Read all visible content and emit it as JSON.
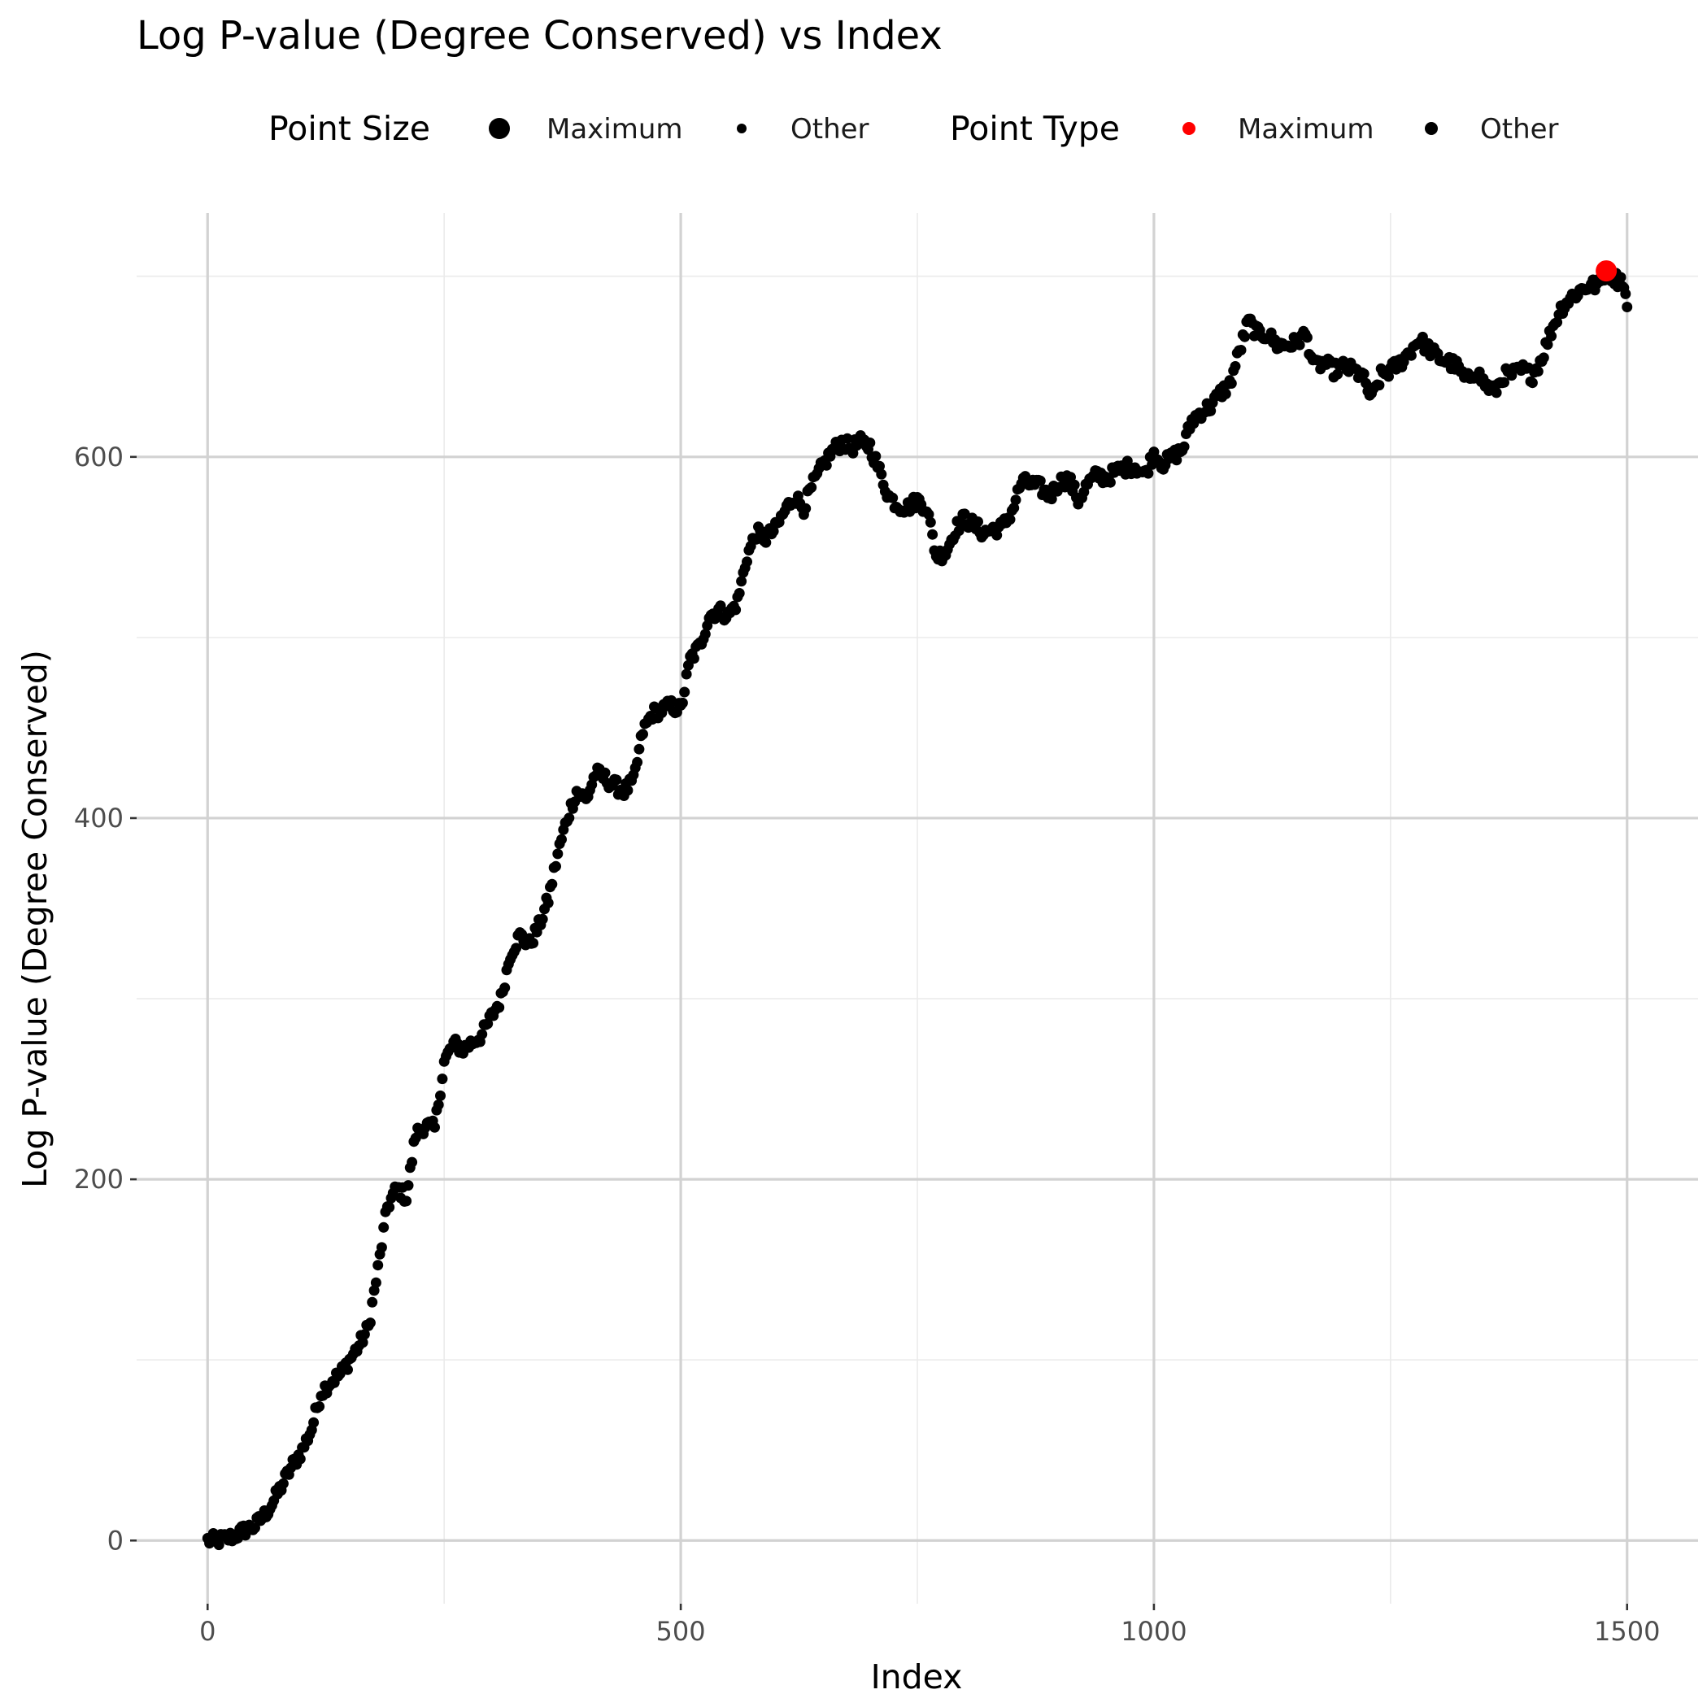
{
  "chart_data": {
    "type": "scatter",
    "title": "Log P-value (Degree Conserved) vs Index",
    "xlabel": "Index",
    "ylabel": "Log P-value (Degree Conserved)",
    "xlim": [
      -75,
      1575
    ],
    "ylim": [
      -35,
      735
    ],
    "x_ticks": [
      0,
      500,
      1000,
      1500
    ],
    "y_ticks": [
      0,
      200,
      400,
      600
    ],
    "x_tick_labels": [
      "0",
      "500",
      "1000",
      "1500"
    ],
    "y_tick_labels": [
      "0",
      "200",
      "400",
      "600"
    ],
    "grid": true,
    "legend_position": "top",
    "legends": [
      {
        "title": "Point Size",
        "entries": [
          {
            "label": "Maximum",
            "kind": "size-large",
            "color": "#000000"
          },
          {
            "label": "Other",
            "kind": "size-small",
            "color": "#000000"
          }
        ]
      },
      {
        "title": "Point Type",
        "entries": [
          {
            "label": "Maximum",
            "kind": "color",
            "color": "#ff0000"
          },
          {
            "label": "Other",
            "kind": "color",
            "color": "#000000"
          }
        ]
      }
    ],
    "maximum_point": {
      "x": 1478,
      "y": 703,
      "color": "#ff0000"
    },
    "other_color": "#000000",
    "series_anchors": {
      "x": [
        0,
        10,
        20,
        30,
        40,
        50,
        60,
        70,
        80,
        90,
        100,
        110,
        120,
        130,
        140,
        150,
        160,
        170,
        180,
        190,
        200,
        210,
        220,
        230,
        240,
        250,
        260,
        270,
        280,
        290,
        300,
        310,
        320,
        330,
        340,
        350,
        360,
        370,
        380,
        390,
        400,
        410,
        420,
        430,
        440,
        450,
        460,
        470,
        480,
        490,
        500,
        510,
        520,
        530,
        540,
        550,
        560,
        570,
        580,
        590,
        600,
        610,
        620,
        630,
        640,
        650,
        660,
        670,
        680,
        690,
        700,
        710,
        720,
        730,
        740,
        750,
        760,
        770,
        780,
        790,
        800,
        810,
        820,
        830,
        840,
        850,
        860,
        870,
        880,
        890,
        900,
        910,
        920,
        930,
        940,
        950,
        960,
        970,
        980,
        990,
        1000,
        1010,
        1020,
        1030,
        1040,
        1050,
        1060,
        1070,
        1080,
        1090,
        1100,
        1110,
        1120,
        1130,
        1140,
        1150,
        1160,
        1170,
        1180,
        1190,
        1200,
        1210,
        1220,
        1230,
        1240,
        1250,
        1260,
        1270,
        1280,
        1290,
        1300,
        1310,
        1320,
        1330,
        1340,
        1350,
        1360,
        1370,
        1380,
        1390,
        1400,
        1410,
        1420,
        1430,
        1440,
        1450,
        1460,
        1470,
        1478,
        1485,
        1490,
        1495,
        1500
      ],
      "y": [
        0,
        0,
        1,
        3,
        6,
        8,
        14,
        22,
        32,
        42,
        50,
        62,
        82,
        88,
        92,
        100,
        108,
        118,
        150,
        185,
        195,
        190,
        225,
        230,
        228,
        265,
        275,
        272,
        276,
        280,
        290,
        300,
        325,
        335,
        330,
        340,
        355,
        380,
        400,
        415,
        410,
        425,
        422,
        418,
        415,
        420,
        448,
        458,
        460,
        462,
        460,
        488,
        495,
        512,
        515,
        512,
        520,
        545,
        558,
        555,
        560,
        570,
        578,
        572,
        585,
        595,
        603,
        608,
        605,
        608,
        606,
        592,
        578,
        573,
        572,
        576,
        572,
        545,
        547,
        560,
        566,
        562,
        558,
        560,
        561,
        570,
        586,
        585,
        583,
        578,
        586,
        588,
        576,
        585,
        590,
        588,
        592,
        594,
        595,
        590,
        602,
        596,
        600,
        604,
        620,
        625,
        628,
        635,
        640,
        658,
        675,
        668,
        668,
        662,
        662,
        663,
        668,
        650,
        652,
        648,
        650,
        648,
        645,
        632,
        645,
        648,
        652,
        658,
        665,
        660,
        655,
        653,
        650,
        642,
        648,
        640,
        636,
        645,
        646,
        648,
        645,
        655,
        670,
        682,
        688,
        692,
        695,
        695,
        703,
        700,
        698,
        698,
        683
      ]
    }
  }
}
